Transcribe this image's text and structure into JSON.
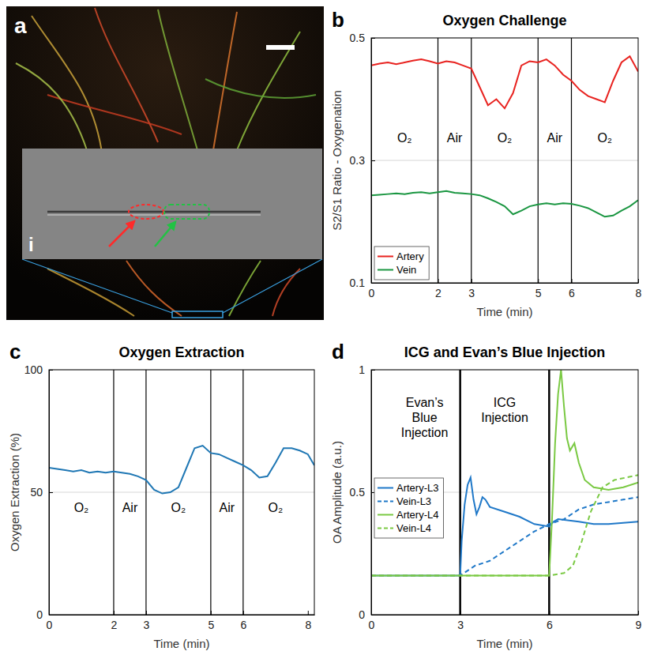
{
  "image_panel": {
    "panel_label": "a",
    "inset_label": "i"
  },
  "chart_data": [
    {
      "type": "line",
      "panel_label": "b",
      "title": "Oxygen Challenge",
      "x_label": "Time (min)",
      "y_label": "S2/S1 Ratio - Oxygenation",
      "xlim": [
        0,
        8
      ],
      "xticks": [
        0,
        2,
        3,
        5,
        6,
        8
      ],
      "ylim": [
        0.1,
        0.5
      ],
      "yticks": [
        0.1,
        0.3,
        0.5
      ],
      "grid": true,
      "legend": "lower left",
      "event_lines": [
        2,
        3,
        5,
        6
      ],
      "annotations": [
        {
          "text": "O₂",
          "x": 1,
          "y": 0.33
        },
        {
          "text": "Air",
          "x": 2.5,
          "y": 0.33
        },
        {
          "text": "O₂",
          "x": 4,
          "y": 0.33
        },
        {
          "text": "Air",
          "x": 5.5,
          "y": 0.33
        },
        {
          "text": "O₂",
          "x": 7,
          "y": 0.33
        }
      ],
      "x": [
        0,
        0.25,
        0.5,
        0.75,
        1,
        1.25,
        1.5,
        1.75,
        2,
        2.25,
        2.5,
        2.75,
        3,
        3.25,
        3.5,
        3.75,
        4,
        4.25,
        4.5,
        4.75,
        5,
        5.25,
        5.5,
        5.75,
        6,
        6.25,
        6.5,
        6.75,
        7,
        7.25,
        7.5,
        7.75,
        8
      ],
      "series": [
        {
          "name": "Artery",
          "color": "#e8221f",
          "line_style": "solid",
          "values": [
            0.455,
            0.458,
            0.46,
            0.457,
            0.46,
            0.463,
            0.465,
            0.462,
            0.458,
            0.462,
            0.46,
            0.455,
            0.45,
            0.42,
            0.39,
            0.4,
            0.385,
            0.41,
            0.455,
            0.462,
            0.46,
            0.465,
            0.455,
            0.44,
            0.43,
            0.415,
            0.405,
            0.4,
            0.395,
            0.43,
            0.46,
            0.47,
            0.445
          ]
        },
        {
          "name": "Vein",
          "color": "#1a9641",
          "line_style": "solid",
          "values": [
            0.243,
            0.244,
            0.245,
            0.246,
            0.245,
            0.247,
            0.248,
            0.246,
            0.248,
            0.25,
            0.247,
            0.246,
            0.245,
            0.243,
            0.238,
            0.232,
            0.225,
            0.212,
            0.218,
            0.225,
            0.228,
            0.23,
            0.228,
            0.23,
            0.229,
            0.226,
            0.222,
            0.215,
            0.208,
            0.21,
            0.218,
            0.225,
            0.235
          ]
        }
      ]
    },
    {
      "type": "line",
      "panel_label": "c",
      "title": "Oxygen Extraction",
      "x_label": "Time (min)",
      "y_label": "Oxygen Extraction (%)",
      "xlim": [
        0,
        8.2
      ],
      "xticks": [
        0,
        2,
        3,
        5,
        6,
        8
      ],
      "ylim": [
        0,
        100
      ],
      "yticks": [
        0,
        50,
        100
      ],
      "grid": true,
      "color": "#1f77b4",
      "line_style": "solid",
      "event_lines": [
        2,
        3,
        5,
        6
      ],
      "annotations": [
        {
          "text": "O₂",
          "x": 1,
          "y": 42
        },
        {
          "text": "Air",
          "x": 2.5,
          "y": 42
        },
        {
          "text": "O₂",
          "x": 4,
          "y": 42
        },
        {
          "text": "Air",
          "x": 5.5,
          "y": 42
        },
        {
          "text": "O₂",
          "x": 7,
          "y": 42
        }
      ],
      "x": [
        0,
        0.25,
        0.5,
        0.75,
        1,
        1.25,
        1.5,
        1.75,
        2,
        2.25,
        2.5,
        2.75,
        3,
        3.25,
        3.5,
        3.75,
        4,
        4.25,
        4.5,
        4.75,
        5,
        5.25,
        5.5,
        5.75,
        6,
        6.25,
        6.5,
        6.75,
        7,
        7.25,
        7.5,
        7.75,
        8,
        8.2
      ],
      "values": [
        60,
        59.5,
        59,
        58.5,
        59,
        58,
        58.5,
        58,
        58.5,
        58,
        57.5,
        56.5,
        55,
        51,
        49.5,
        50,
        52,
        60,
        68,
        69,
        66,
        65.5,
        64,
        62.5,
        61,
        59,
        56,
        56.5,
        62,
        68,
        68,
        67,
        65.5,
        61
      ]
    },
    {
      "type": "line",
      "panel_label": "d",
      "title": "ICG and Evan’s Blue Injection",
      "x_label": "Time (min)",
      "y_label": "OA Amplitude (a.u.)",
      "xlim": [
        0,
        9
      ],
      "xticks": [
        0,
        3,
        6,
        9
      ],
      "ylim": [
        0,
        1
      ],
      "yticks": [
        0,
        0.5,
        1
      ],
      "grid": true,
      "legend": "left",
      "event_lines": [
        3,
        6
      ],
      "annotations": [
        {
          "text": "Evan’s Blue Injection",
          "x": 1.8,
          "y": 0.85
        },
        {
          "text": "ICG Injection",
          "x": 4.5,
          "y": 0.85
        }
      ],
      "series": [
        {
          "name": "Artery-L3",
          "color": "#1f78c8",
          "line_style": "solid",
          "x": [
            0,
            3,
            3.05,
            3.15,
            3.25,
            3.35,
            3.45,
            3.55,
            3.65,
            3.75,
            3.85,
            4,
            4.5,
            5,
            5.5,
            6,
            6.15,
            6.3,
            7,
            7.5,
            8,
            8.5,
            9
          ],
          "values": [
            0.16,
            0.16,
            0.3,
            0.45,
            0.53,
            0.56,
            0.47,
            0.41,
            0.44,
            0.48,
            0.47,
            0.44,
            0.42,
            0.4,
            0.37,
            0.36,
            0.38,
            0.39,
            0.38,
            0.37,
            0.37,
            0.375,
            0.38
          ]
        },
        {
          "name": "Vein-L3",
          "color": "#1f78c8",
          "line_style": "dashed",
          "x": [
            0,
            3,
            3.5,
            4,
            4.5,
            5,
            5.5,
            6,
            6.5,
            7,
            7.5,
            8,
            8.5,
            9
          ],
          "values": [
            0.16,
            0.16,
            0.2,
            0.22,
            0.26,
            0.3,
            0.34,
            0.37,
            0.39,
            0.43,
            0.45,
            0.46,
            0.47,
            0.48
          ]
        },
        {
          "name": "Artery-L4",
          "color": "#7ac943",
          "line_style": "solid",
          "x": [
            0,
            6,
            6.1,
            6.2,
            6.3,
            6.4,
            6.5,
            6.6,
            6.7,
            6.85,
            7,
            7.2,
            7.5,
            8,
            8.5,
            9
          ],
          "values": [
            0.16,
            0.16,
            0.4,
            0.7,
            0.9,
            1.0,
            0.85,
            0.72,
            0.67,
            0.7,
            0.62,
            0.55,
            0.52,
            0.51,
            0.52,
            0.54
          ]
        },
        {
          "name": "Vein-L4",
          "color": "#7ac943",
          "line_style": "dashed",
          "x": [
            0,
            6,
            6.5,
            6.8,
            7.1,
            7.4,
            7.8,
            8.2,
            8.6,
            9
          ],
          "values": [
            0.16,
            0.16,
            0.17,
            0.2,
            0.3,
            0.42,
            0.52,
            0.55,
            0.56,
            0.57
          ]
        }
      ]
    }
  ]
}
